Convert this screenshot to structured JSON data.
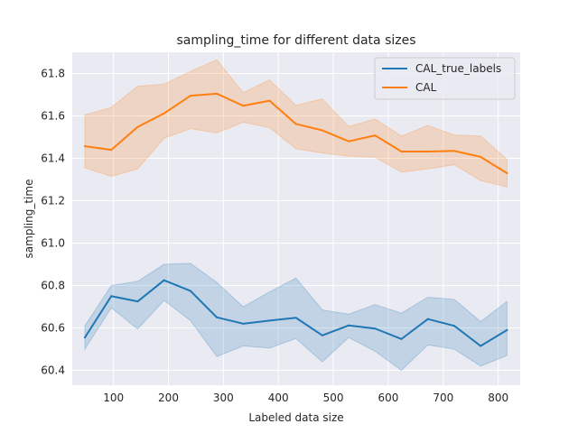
{
  "chart_data": {
    "type": "line",
    "title": "sampling_time for different data sizes",
    "xlabel": "Labeled data size",
    "ylabel": "sampling_time",
    "xlim": [
      25,
      840
    ],
    "ylim": [
      60.33,
      61.9
    ],
    "x_ticks": [
      100,
      200,
      300,
      400,
      500,
      600,
      700,
      800
    ],
    "y_ticks": [
      60.4,
      60.6,
      60.8,
      61.0,
      61.2,
      61.4,
      61.6,
      61.8
    ],
    "grid": true,
    "legend_position": "top-right",
    "x": [
      48,
      96,
      144,
      192,
      240,
      288,
      336,
      384,
      432,
      480,
      528,
      576,
      624,
      672,
      720,
      768,
      816
    ],
    "series": [
      {
        "name": "CAL_true_labels",
        "color": "#1f77b4",
        "values": [
          60.555,
          60.75,
          60.725,
          60.825,
          60.775,
          60.65,
          60.62,
          60.635,
          60.648,
          60.565,
          60.612,
          60.597,
          60.548,
          60.642,
          60.61,
          60.515,
          60.59
        ],
        "lower": [
          60.5,
          60.695,
          60.595,
          60.73,
          60.635,
          60.465,
          60.515,
          60.505,
          60.55,
          60.44,
          60.555,
          60.49,
          60.4,
          60.52,
          60.5,
          60.42,
          60.47
        ],
        "upper": [
          60.61,
          60.8,
          60.82,
          60.9,
          60.905,
          60.815,
          60.7,
          60.77,
          60.835,
          60.685,
          60.665,
          60.71,
          60.67,
          60.745,
          60.735,
          60.63,
          60.725
        ]
      },
      {
        "name": "CAL",
        "color": "#ff7f0e",
        "values": [
          61.457,
          61.44,
          61.548,
          61.612,
          61.695,
          61.705,
          61.648,
          61.672,
          61.562,
          61.532,
          61.48,
          61.508,
          61.432,
          61.432,
          61.435,
          61.407,
          61.33
        ],
        "lower": [
          61.355,
          61.315,
          61.35,
          61.495,
          61.54,
          61.52,
          61.57,
          61.545,
          61.445,
          61.425,
          61.41,
          61.405,
          61.335,
          61.35,
          61.37,
          61.295,
          61.265
        ],
        "upper": [
          61.605,
          61.64,
          61.74,
          61.75,
          61.81,
          61.865,
          61.71,
          61.77,
          61.65,
          61.68,
          61.55,
          61.585,
          61.505,
          61.555,
          61.51,
          61.505,
          61.395
        ]
      }
    ]
  }
}
